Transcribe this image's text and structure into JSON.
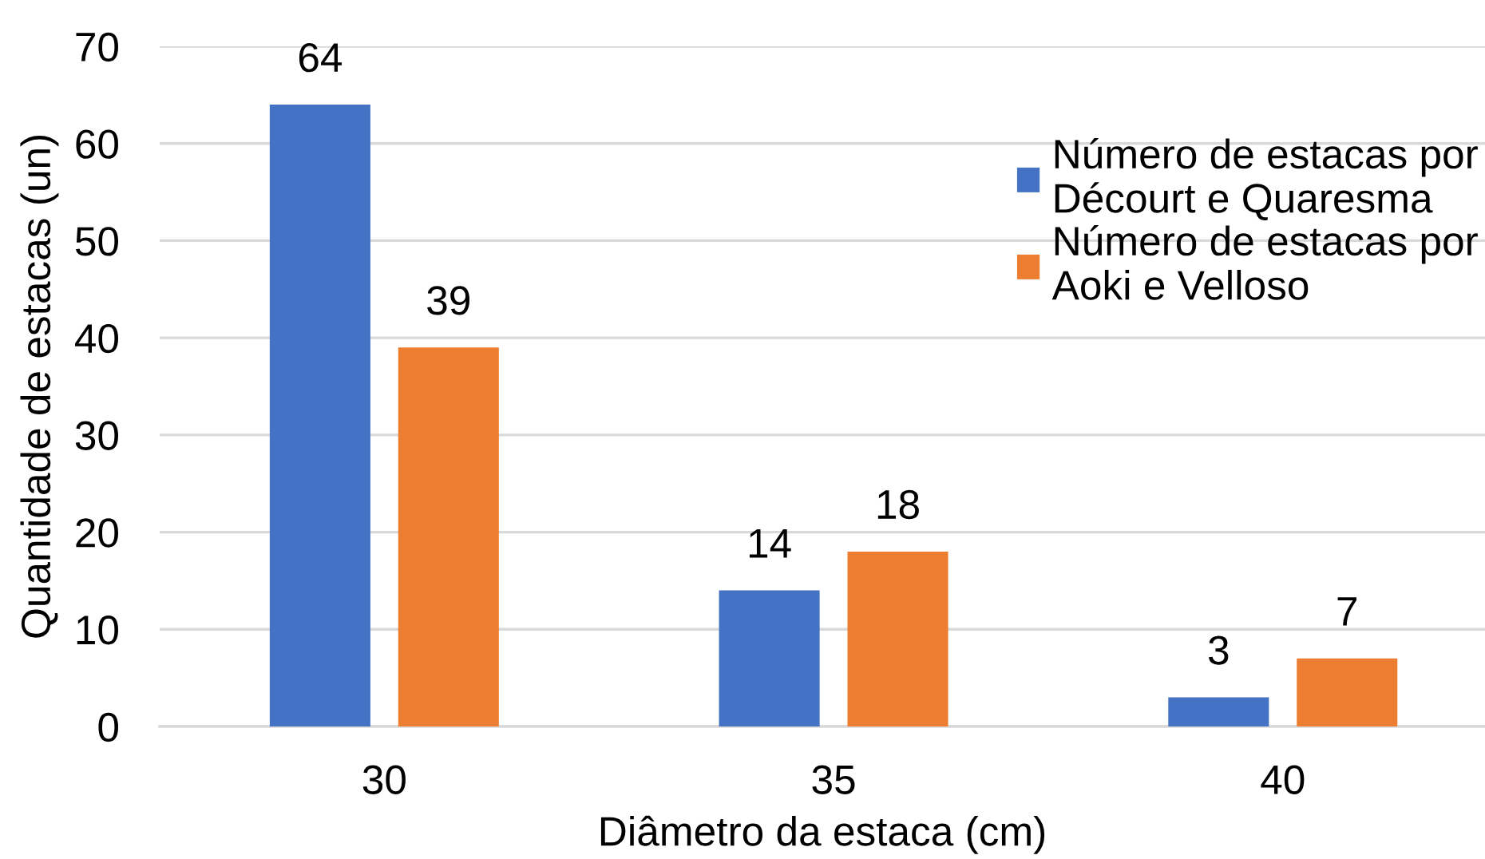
{
  "chart_data": {
    "type": "bar",
    "xlabel": "Diâmetro da estaca (cm)",
    "ylabel": "Quantidade de estacas (un)",
    "categories": [
      "30",
      "35",
      "40"
    ],
    "series": [
      {
        "name": "Número de estacas por\nDécourt e Quaresma",
        "color": "#4472c4",
        "values": [
          64,
          14,
          3
        ]
      },
      {
        "name": "Número de estacas por\nAoki e Velloso",
        "color": "#ed7d31",
        "values": [
          39,
          18,
          7
        ]
      }
    ],
    "ylim": [
      0,
      70
    ],
    "yticks": [
      0,
      10,
      20,
      30,
      40,
      50,
      60,
      70
    ],
    "grid": "y",
    "legend": "top right",
    "data_labels": true
  }
}
